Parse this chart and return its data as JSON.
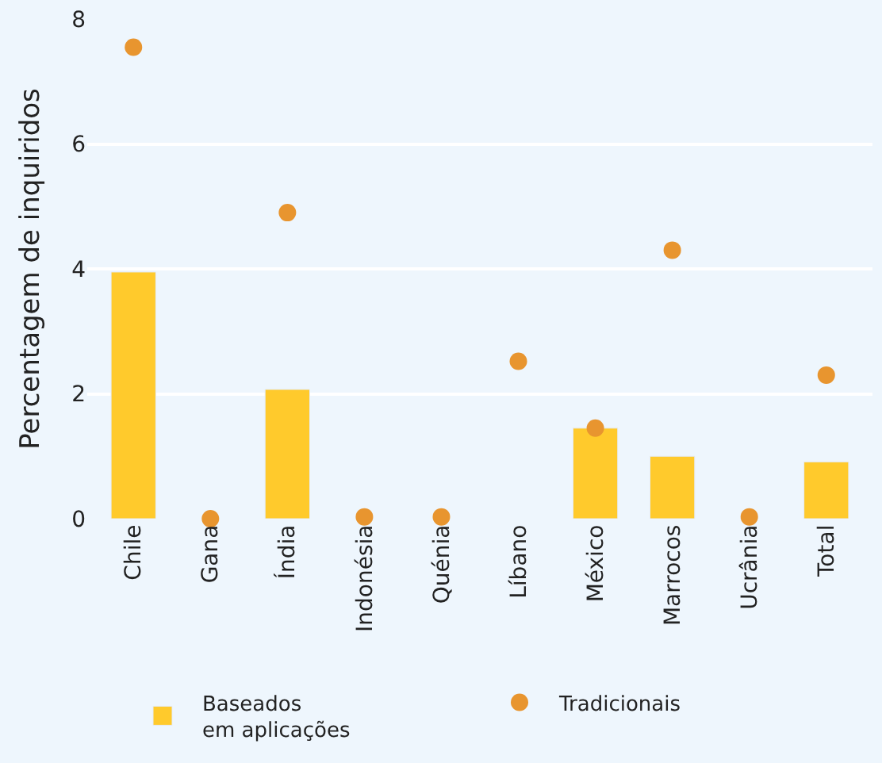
{
  "chart_data": {
    "type": "bar",
    "ylabel": "Percentagem de inquiridos",
    "categories": [
      "Chile",
      "Gana",
      "Índia",
      "Indonésia",
      "Quénia",
      "Líbano",
      "México",
      "Marrocos",
      "Ucrânia",
      "Total"
    ],
    "series": [
      {
        "name": "Baseados\nem aplicações",
        "color": "#ffca2c",
        "values": [
          3.95,
          null,
          2.07,
          null,
          null,
          null,
          1.45,
          1.0,
          null,
          0.91
        ]
      },
      {
        "name": "Tradicionais",
        "type": "scatter",
        "color": "#e8952f",
        "values": [
          7.55,
          0,
          4.9,
          0.03,
          0.03,
          2.52,
          1.45,
          4.3,
          0.03,
          2.3
        ]
      }
    ],
    "ylim": [
      0,
      8
    ],
    "yticks": [
      0,
      2,
      4,
      6,
      8
    ],
    "grid": "y",
    "legend": "bottom",
    "marker": "circle"
  }
}
